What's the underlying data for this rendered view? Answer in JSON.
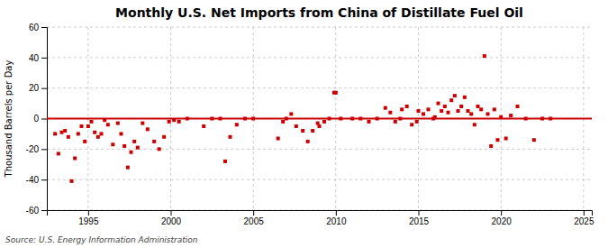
{
  "chart_data": {
    "type": "scatter",
    "title": "Monthly U.S. Net Imports from China of Distillate Fuel Oil",
    "ylabel": "Thousand Barrels per Day",
    "annotation": "Source: U.S. Energy Information Administration",
    "xlim": [
      1992.5,
      2025.5
    ],
    "ylim": [
      -60,
      60
    ],
    "xticks": [
      1995,
      2000,
      2005,
      2010,
      2015,
      2020,
      2025
    ],
    "yticks": [
      -60,
      -40,
      -20,
      0,
      20,
      40,
      60
    ],
    "grid": true,
    "marker": "square",
    "color": "#cc0000",
    "zero_line": {
      "value": 0,
      "color": "#cc0000"
    },
    "x": [
      1993.0,
      1993.2,
      1993.4,
      1993.6,
      1993.8,
      1994.0,
      1994.2,
      1994.4,
      1994.6,
      1994.8,
      1995.0,
      1995.2,
      1995.4,
      1995.6,
      1995.8,
      1996.0,
      1996.2,
      1996.5,
      1996.8,
      1997.0,
      1997.2,
      1997.4,
      1997.6,
      1997.8,
      1998.0,
      1998.3,
      1998.6,
      1999.0,
      1999.3,
      1999.6,
      1999.9,
      2000.2,
      2000.5,
      2001.0,
      2002.0,
      2002.5,
      2003.0,
      2003.3,
      2003.6,
      2004.0,
      2004.5,
      2005.0,
      2006.5,
      2006.8,
      2007.0,
      2007.3,
      2007.6,
      2008.0,
      2008.3,
      2008.6,
      2008.9,
      2009.0,
      2009.3,
      2009.6,
      2009.9,
      2010.0,
      2010.3,
      2011.0,
      2011.5,
      2012.0,
      2012.5,
      2013.0,
      2013.3,
      2013.6,
      2013.9,
      2014.0,
      2014.3,
      2014.6,
      2014.9,
      2015.0,
      2015.3,
      2015.6,
      2015.9,
      2016.0,
      2016.2,
      2016.4,
      2016.6,
      2016.8,
      2017.0,
      2017.2,
      2017.4,
      2017.6,
      2017.8,
      2018.0,
      2018.2,
      2018.4,
      2018.6,
      2018.8,
      2019.0,
      2019.2,
      2019.4,
      2019.6,
      2019.8,
      2020.0,
      2020.3,
      2020.6,
      2021.0,
      2021.5,
      2022.0,
      2022.5,
      2023.0
    ],
    "values": [
      -10,
      -23,
      -9,
      -8,
      -12,
      -41,
      -26,
      -10,
      -5,
      -15,
      -5,
      -2,
      -9,
      -12,
      -10,
      -1,
      -4,
      -17,
      -3,
      -10,
      -18,
      -32,
      -22,
      -15,
      -19,
      -3,
      -7,
      -15,
      -20,
      -12,
      -2,
      -1,
      -2,
      0,
      -5,
      0,
      0,
      -28,
      -12,
      -4,
      0,
      0,
      -13,
      -2,
      0,
      3,
      -5,
      -8,
      -15,
      -8,
      -3,
      -5,
      -2,
      0,
      17,
      17,
      0,
      0,
      0,
      -2,
      0,
      7,
      4,
      -2,
      0,
      6,
      8,
      -4,
      -2,
      5,
      3,
      6,
      0,
      1,
      10,
      5,
      8,
      4,
      12,
      15,
      5,
      8,
      14,
      5,
      3,
      -4,
      8,
      6,
      41,
      3,
      -18,
      6,
      -14,
      1,
      -13,
      2,
      8,
      0,
      -14,
      0,
      0
    ]
  }
}
